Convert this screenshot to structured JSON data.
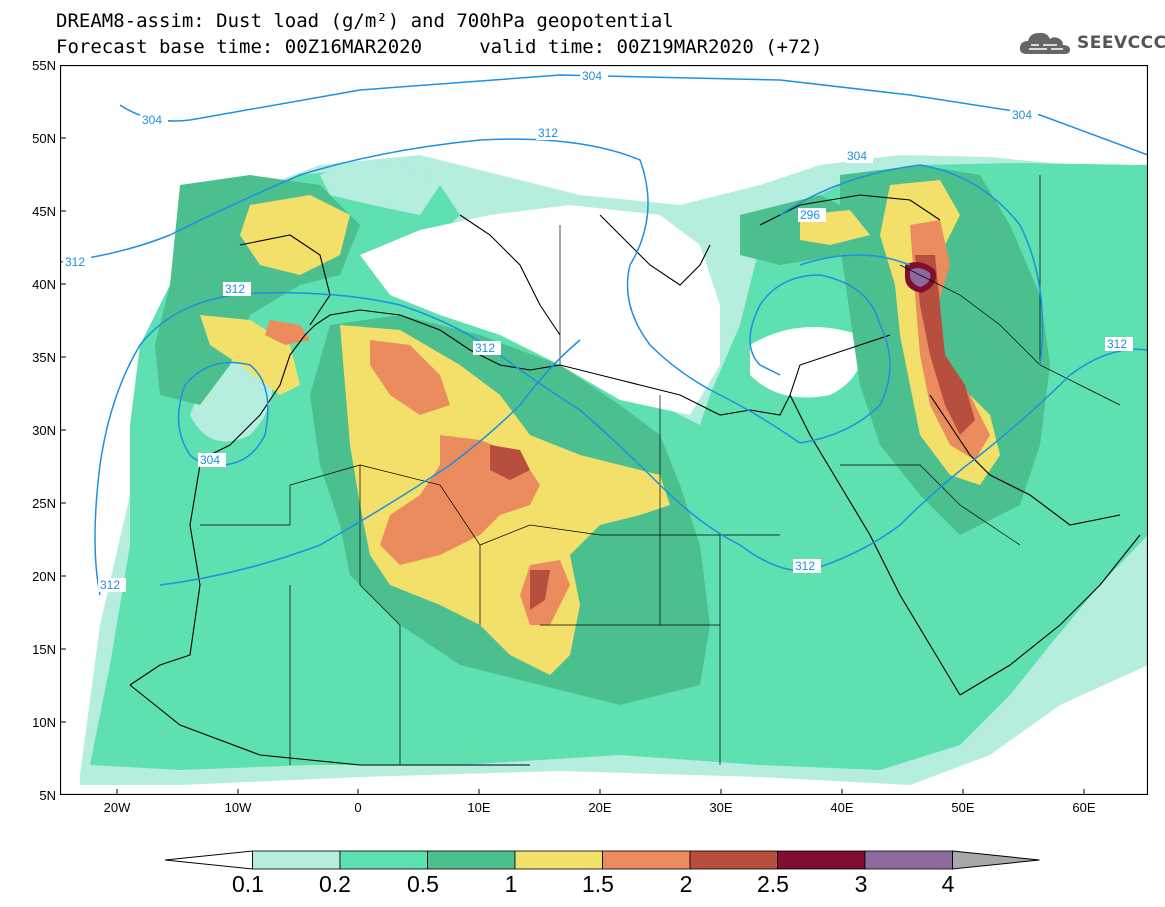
{
  "header": {
    "title_line1": "DREAM8-assim: Dust load (g/m²) and 700hPa geopotential",
    "title_line2": "Forecast base time: 00Z16MAR2020     valid time: 00Z19MAR2020 (+72)",
    "logo_text": "SEEVCCC",
    "logo_icon": "cloud-icon"
  },
  "map": {
    "projection": "lat-lon",
    "lon_range": [
      -25,
      65
    ],
    "lat_range": [
      5,
      55
    ],
    "lat_ticks": [
      "55N",
      "50N",
      "45N",
      "40N",
      "35N",
      "30N",
      "25N",
      "20N",
      "15N",
      "10N",
      "5N"
    ],
    "lon_ticks": [
      "20W",
      "10W",
      "0",
      "10E",
      "20E",
      "30E",
      "40E",
      "50E",
      "60E"
    ],
    "contour_labels": [
      "304",
      "304",
      "304",
      "304",
      "304",
      "312",
      "312",
      "312",
      "312",
      "312",
      "312",
      "312",
      "296"
    ],
    "contour_color": "#1e90e0"
  },
  "legend": {
    "labels": [
      "0.1",
      "0.2",
      "0.5",
      "1",
      "1.5",
      "2",
      "2.5",
      "3",
      "4"
    ],
    "colors": [
      "#b5eddf",
      "#5fe0b0",
      "#4cbf8e",
      "#f2e06a",
      "#eb8c5e",
      "#b84e3e",
      "#7e0f2e",
      "#8c6a9e"
    ],
    "under_color": "#ffffff",
    "over_color": "#a8a8a8"
  }
}
